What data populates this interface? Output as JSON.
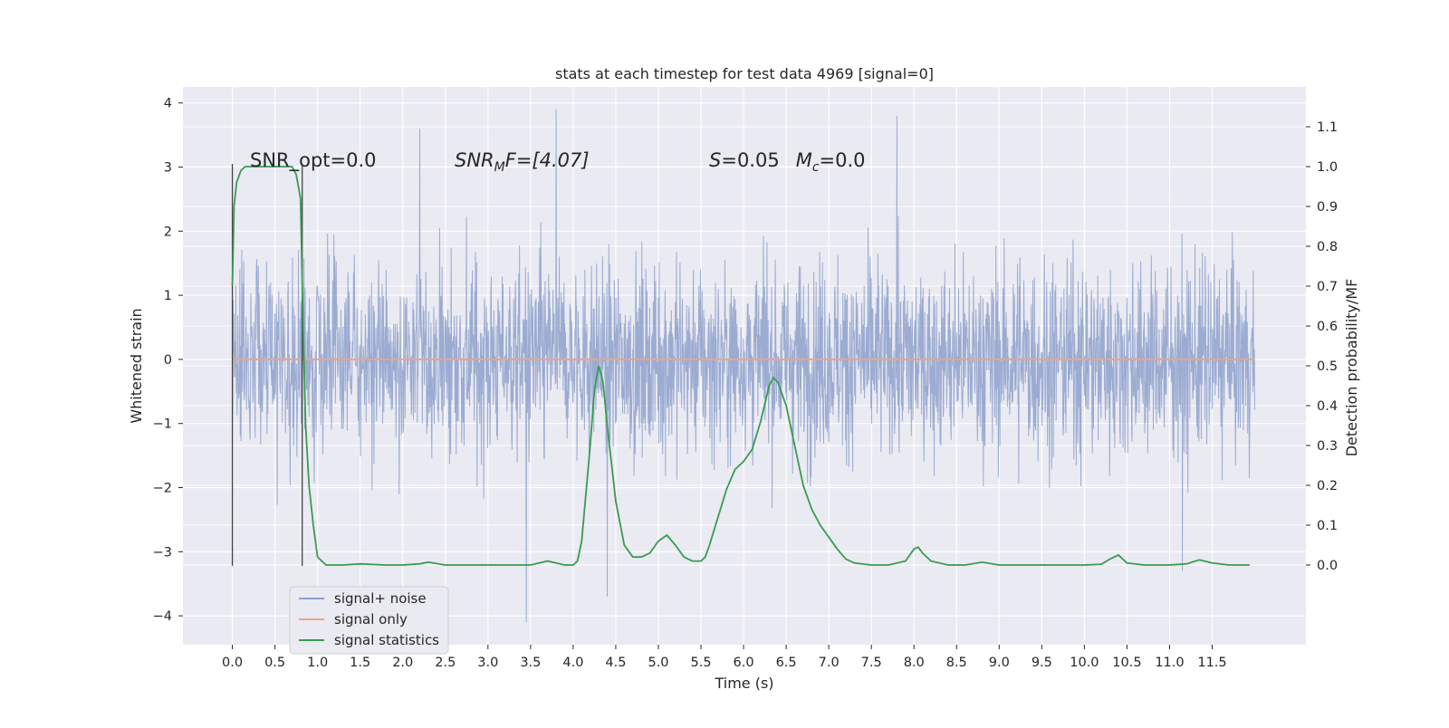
{
  "chart_data": {
    "type": "line",
    "title": "stats at each timestep for test data 4969 [signal=0]",
    "xlabel": "Time (s)",
    "ylabel_left": "Whitened strain",
    "ylabel_right": "Detection probability/MF",
    "xlim": [
      -0.58,
      12.6
    ],
    "ylim_left": [
      -4.45,
      4.25
    ],
    "ylim_right": [
      -0.2,
      1.2
    ],
    "x_ticks": [
      "0.0",
      "0.5",
      "1.0",
      "1.5",
      "2.0",
      "2.5",
      "3.0",
      "3.5",
      "4.0",
      "4.5",
      "5.0",
      "5.5",
      "6.0",
      "6.5",
      "7.0",
      "7.5",
      "8.0",
      "8.5",
      "9.0",
      "9.5",
      "10.0",
      "10.5",
      "11.0",
      "11.5"
    ],
    "y_ticks_left": [
      "4",
      "3",
      "2",
      "1",
      "0",
      "−1",
      "−2",
      "−3",
      "−4"
    ],
    "y_ticks_right": [
      "1.1",
      "1.0",
      "0.9",
      "0.8",
      "0.7",
      "0.6",
      "0.5",
      "0.4",
      "0.3",
      "0.2",
      "0.1",
      "0.0"
    ],
    "grid": true,
    "annotations": {
      "snr_opt": "SNR_opt=0.0",
      "snr_mf_label": "SNR",
      "snr_mf_sub": "M",
      "snr_mf_rest": "F=[4.07]",
      "s_label": "S",
      "s_value": "=0.05",
      "mc_label": "M",
      "mc_sub": "c",
      "mc_value": "=0.0"
    },
    "legend": {
      "placement": "lower-left",
      "entries": [
        "signal+ noise",
        "signal only",
        "signal statistics"
      ]
    },
    "colors": {
      "signal_noise": "#8da0cb",
      "signal_only": "#e8a58a",
      "statistics": "#3a9b50",
      "markers": "#444444",
      "background": "#eaeaf2"
    },
    "series": [
      {
        "name": "signal+ noise",
        "axis": "left",
        "x_range": [
          0.0,
          12.0
        ],
        "envelope_note": "noise, range about -4.1 to 3.9",
        "peaks": [
          [
            3.8,
            3.9
          ],
          [
            7.8,
            3.8
          ],
          [
            2.2,
            3.6
          ],
          [
            3.45,
            -4.1
          ],
          [
            4.4,
            -3.7
          ],
          [
            11.15,
            -3.3
          ]
        ]
      },
      {
        "name": "signal only",
        "axis": "left",
        "x": [
          0.0,
          12.0
        ],
        "values": [
          0.0,
          0.0
        ]
      },
      {
        "name": "signal statistics",
        "axis": "right",
        "x": [
          0.0,
          0.02,
          0.05,
          0.1,
          0.15,
          0.2,
          0.3,
          0.5,
          0.7,
          0.75,
          0.8,
          0.83,
          0.86,
          0.9,
          0.95,
          1.0,
          1.1,
          1.3,
          1.5,
          1.8,
          2.0,
          2.2,
          2.3,
          2.5,
          3.0,
          3.5,
          3.7,
          3.9,
          4.0,
          4.05,
          4.1,
          4.2,
          4.25,
          4.3,
          4.35,
          4.4,
          4.5,
          4.6,
          4.7,
          4.8,
          4.9,
          5.0,
          5.1,
          5.2,
          5.3,
          5.4,
          5.5,
          5.55,
          5.6,
          5.7,
          5.8,
          5.9,
          6.0,
          6.1,
          6.2,
          6.3,
          6.35,
          6.4,
          6.5,
          6.6,
          6.7,
          6.8,
          6.9,
          7.0,
          7.1,
          7.2,
          7.3,
          7.5,
          7.7,
          7.9,
          8.0,
          8.05,
          8.1,
          8.2,
          8.4,
          8.6,
          8.8,
          9.0,
          9.5,
          10.0,
          10.2,
          10.3,
          10.4,
          10.5,
          10.7,
          11.0,
          11.2,
          11.35,
          11.5,
          11.7,
          11.94
        ],
        "values": [
          0.7,
          0.9,
          0.96,
          0.99,
          1.0,
          1.0,
          1.0,
          1.0,
          1.0,
          0.98,
          0.92,
          0.6,
          0.35,
          0.2,
          0.1,
          0.02,
          0.0,
          0.0,
          0.003,
          0.0,
          0.0,
          0.003,
          0.007,
          0.0,
          0.0,
          0.0,
          0.01,
          0.0,
          0.0,
          0.01,
          0.06,
          0.3,
          0.44,
          0.5,
          0.46,
          0.35,
          0.16,
          0.05,
          0.02,
          0.02,
          0.03,
          0.06,
          0.075,
          0.05,
          0.02,
          0.01,
          0.01,
          0.02,
          0.05,
          0.12,
          0.19,
          0.24,
          0.26,
          0.29,
          0.36,
          0.45,
          0.47,
          0.46,
          0.4,
          0.3,
          0.2,
          0.14,
          0.1,
          0.07,
          0.04,
          0.015,
          0.005,
          0.0,
          0.0,
          0.01,
          0.04,
          0.045,
          0.03,
          0.01,
          0.0,
          0.0,
          0.007,
          0.0,
          0.0,
          0.0,
          0.002,
          0.015,
          0.025,
          0.005,
          0.0,
          0.0,
          0.003,
          0.013,
          0.005,
          0.0,
          0.0
        ]
      }
    ],
    "vertical_markers_x": [
      0.0,
      0.82
    ]
  }
}
